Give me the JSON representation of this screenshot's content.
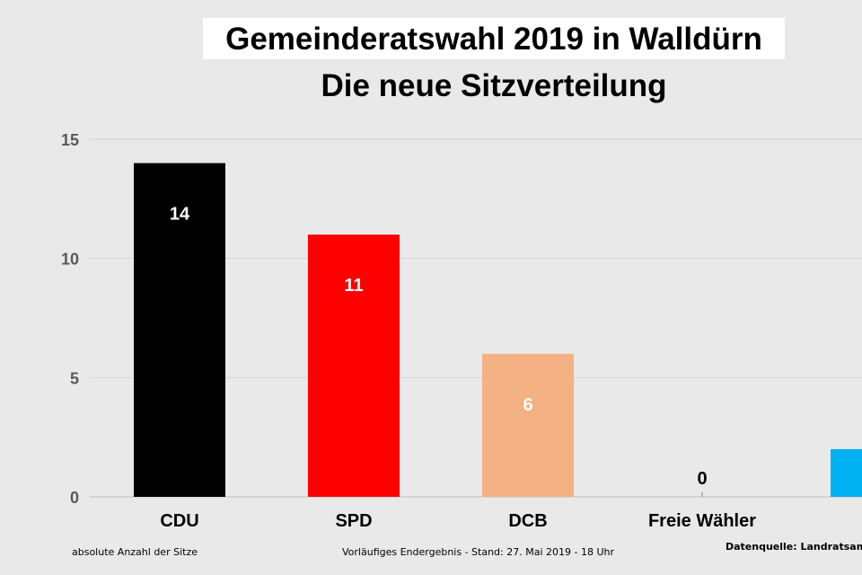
{
  "chart_data": {
    "type": "bar",
    "title": "Gemeinderatswahl 2019 in Walldürn",
    "subtitle": "Die neue Sitzverteilung",
    "categories": [
      "CDU",
      "SPD",
      "DCB",
      "Freie Wähler",
      ""
    ],
    "values": [
      14,
      11,
      6,
      0,
      2
    ],
    "data_labels": [
      "14",
      "11",
      "6",
      "0",
      ""
    ],
    "colors": [
      "#000000",
      "#ff0000",
      "#f4b183",
      "#7f7f7f",
      "#00b0f0"
    ],
    "label_colors": [
      "#ffffff",
      "#ffffff",
      "#ffffff",
      "#000000",
      "#ffffff"
    ],
    "ylim": [
      0,
      15
    ],
    "yticks": [
      0,
      5,
      10,
      15
    ],
    "ytick_labels": [
      "0",
      "5",
      "10",
      "15"
    ],
    "grid": true,
    "xlabel": "",
    "ylabel": ""
  },
  "footer": {
    "left": "absolute Anzahl der Sitze",
    "center": "Vorläufiges Endergebnis - Stand: 27. Mai 2019  - 18 Uhr",
    "right": "Datenquelle: Landratsamt /"
  }
}
